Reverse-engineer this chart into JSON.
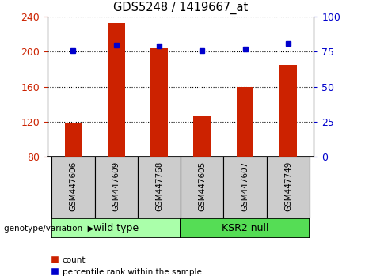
{
  "title": "GDS5248 / 1419667_at",
  "samples": [
    "GSM447606",
    "GSM447609",
    "GSM447768",
    "GSM447605",
    "GSM447607",
    "GSM447749"
  ],
  "groups": [
    "wild type",
    "wild type",
    "wild type",
    "KSR2 null",
    "KSR2 null",
    "KSR2 null"
  ],
  "counts": [
    118,
    233,
    204,
    126,
    160,
    185
  ],
  "percentile_ranks": [
    76,
    80,
    79,
    76,
    77,
    81
  ],
  "ylim_left": [
    80,
    240
  ],
  "yticks_left": [
    80,
    120,
    160,
    200,
    240
  ],
  "ylim_right": [
    0,
    100
  ],
  "yticks_right": [
    0,
    25,
    50,
    75,
    100
  ],
  "bar_color": "#cc2200",
  "dot_color": "#0000cc",
  "group_colors": {
    "wild type": "#aaffaa",
    "KSR2 null": "#55dd55"
  },
  "sample_box_color": "#cccccc",
  "bar_width": 0.4,
  "label_count": "count",
  "label_percentile": "percentile rank within the sample",
  "genotype_label": "genotype/variation",
  "bg_color": "#ffffff"
}
